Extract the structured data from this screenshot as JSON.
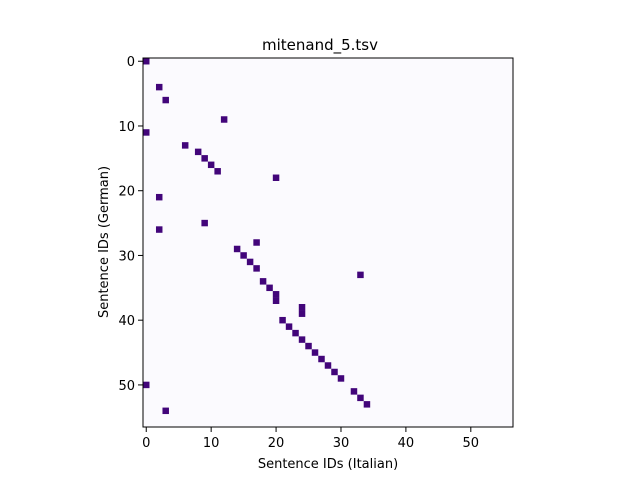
{
  "chart_data": {
    "type": "heatmap",
    "title": "mitenand_5.tsv",
    "xlabel": "Sentence IDs (Italian)",
    "ylabel": "Sentence IDs (German)",
    "xlim": [
      -0.5,
      56.5
    ],
    "ylim": [
      56.5,
      -0.5
    ],
    "xticks": [
      0,
      10,
      20,
      30,
      40,
      50
    ],
    "yticks": [
      0,
      10,
      20,
      30,
      40,
      50
    ],
    "grid": false,
    "background_color": "#fbfafe",
    "mark_color": "#42057a",
    "cells": [
      {
        "x": 0,
        "y": 0
      },
      {
        "x": 2,
        "y": 4
      },
      {
        "x": 3,
        "y": 6
      },
      {
        "x": 12,
        "y": 9
      },
      {
        "x": 0,
        "y": 11
      },
      {
        "x": 6,
        "y": 13
      },
      {
        "x": 8,
        "y": 14
      },
      {
        "x": 9,
        "y": 15
      },
      {
        "x": 10,
        "y": 16
      },
      {
        "x": 11,
        "y": 17
      },
      {
        "x": 20,
        "y": 18
      },
      {
        "x": 2,
        "y": 21
      },
      {
        "x": 9,
        "y": 25
      },
      {
        "x": 2,
        "y": 26
      },
      {
        "x": 17,
        "y": 28
      },
      {
        "x": 14,
        "y": 29
      },
      {
        "x": 15,
        "y": 30
      },
      {
        "x": 16,
        "y": 31
      },
      {
        "x": 17,
        "y": 32
      },
      {
        "x": 33,
        "y": 33
      },
      {
        "x": 18,
        "y": 34
      },
      {
        "x": 19,
        "y": 35
      },
      {
        "x": 20,
        "y": 36
      },
      {
        "x": 20,
        "y": 37
      },
      {
        "x": 24,
        "y": 38
      },
      {
        "x": 24,
        "y": 39
      },
      {
        "x": 21,
        "y": 40
      },
      {
        "x": 22,
        "y": 41
      },
      {
        "x": 23,
        "y": 42
      },
      {
        "x": 24,
        "y": 43
      },
      {
        "x": 25,
        "y": 44
      },
      {
        "x": 26,
        "y": 45
      },
      {
        "x": 27,
        "y": 46
      },
      {
        "x": 28,
        "y": 47
      },
      {
        "x": 29,
        "y": 48
      },
      {
        "x": 30,
        "y": 49
      },
      {
        "x": 0,
        "y": 50
      },
      {
        "x": 32,
        "y": 51
      },
      {
        "x": 33,
        "y": 52
      },
      {
        "x": 34,
        "y": 53
      },
      {
        "x": 3,
        "y": 54
      }
    ]
  }
}
